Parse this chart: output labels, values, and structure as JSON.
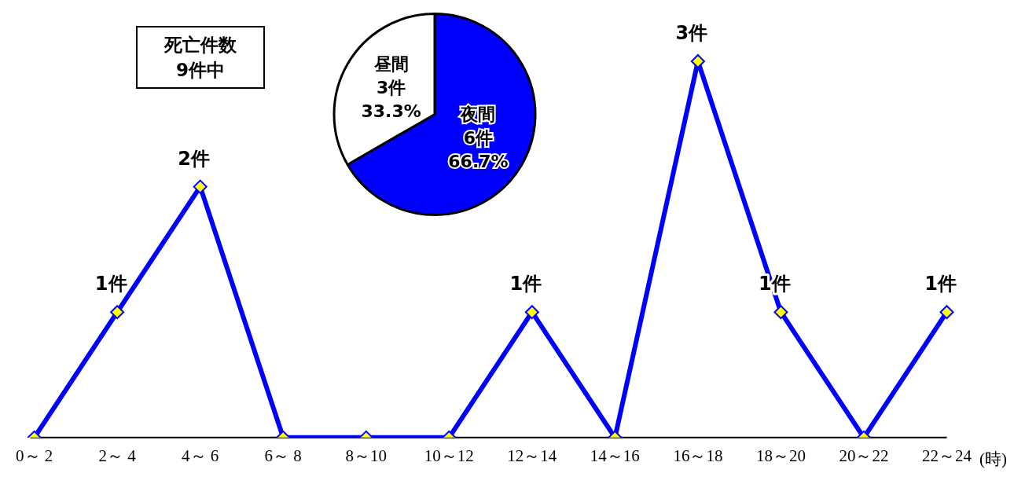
{
  "chart_data": [
    {
      "type": "line",
      "categories": [
        "0～ 2",
        "2～ 4",
        "4～ 6",
        "6～ 8",
        "8～10",
        "10～12",
        "12～14",
        "14～16",
        "16～18",
        "18～20",
        "20～22",
        "22～24"
      ],
      "values": [
        0,
        1,
        2,
        0,
        0,
        0,
        1,
        0,
        3,
        1,
        0,
        1
      ],
      "value_labels": [
        null,
        "1件",
        "2件",
        null,
        null,
        null,
        "1件",
        null,
        "3件",
        "1件",
        null,
        "1件"
      ],
      "color": "#0000ff",
      "marker": "diamond",
      "xlabel": "(時)",
      "annotations": [
        "死亡件数\n9件中"
      ]
    },
    {
      "type": "pie",
      "categories": [
        "夜間",
        "昼間"
      ],
      "values": [
        6,
        3
      ],
      "colors": [
        "#0000ff",
        "#ffffff"
      ],
      "value_labels": [
        "6件\n66.7%",
        "3件\n33.3%"
      ]
    }
  ]
}
